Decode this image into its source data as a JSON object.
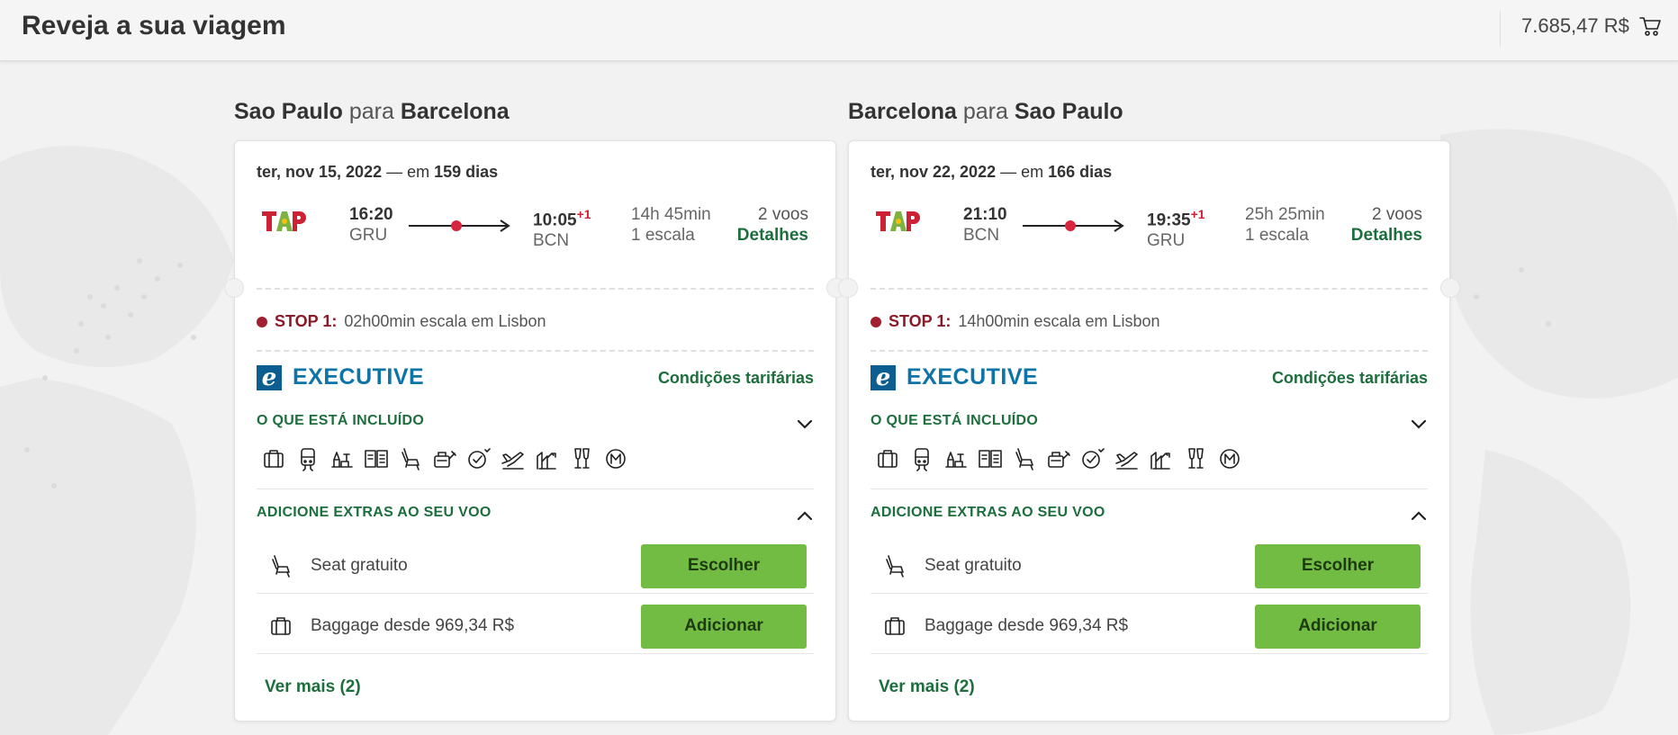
{
  "header": {
    "title": "Reveja a sua viagem",
    "cart_total": "7.685,47 R$"
  },
  "trips": [
    {
      "origin": "Sao Paulo",
      "connector": "para",
      "destination": "Barcelona",
      "date": "ter, nov 15, 2022",
      "date_sep": "— em",
      "days_until": "159 dias",
      "departure_time": "16:20",
      "departure_code": "GRU",
      "arrival_time": "10:05",
      "arrival_offset": "+1",
      "arrival_code": "BCN",
      "duration": "14h 45min",
      "stops": "1 escala",
      "flight_count": "2 voos",
      "details_link": "Detalhes",
      "stop_label": "STOP 1:",
      "stop_text": "02h00min escala em Lisbon",
      "cabin_badge": "e",
      "cabin": "EXECUTIVE",
      "fare_conditions": "Condições tarifárias",
      "included_heading": "O QUE ESTÁ INCLUÍDO",
      "extras_heading": "ADICIONE EXTRAS AO SEU VOO",
      "extras": [
        {
          "label": "Seat gratuito",
          "button": "Escolher",
          "icon": "seat-icon"
        },
        {
          "label": "Baggage desde 969,34 R$",
          "button": "Adicionar",
          "icon": "baggage-icon"
        }
      ],
      "see_more": "Ver mais (2)"
    },
    {
      "origin": "Barcelona",
      "connector": "para",
      "destination": "Sao Paulo",
      "date": "ter, nov 22, 2022",
      "date_sep": "— em",
      "days_until": "166 dias",
      "departure_time": "21:10",
      "departure_code": "BCN",
      "arrival_time": "19:35",
      "arrival_offset": "+1",
      "arrival_code": "GRU",
      "duration": "25h 25min",
      "stops": "1 escala",
      "flight_count": "2 voos",
      "details_link": "Detalhes",
      "stop_label": "STOP 1:",
      "stop_text": "14h00min escala em Lisbon",
      "cabin_badge": "e",
      "cabin": "EXECUTIVE",
      "fare_conditions": "Condições tarifárias",
      "included_heading": "O QUE ESTÁ INCLUÍDO",
      "extras_heading": "ADICIONE EXTRAS AO SEU VOO",
      "extras": [
        {
          "label": "Seat gratuito",
          "button": "Escolher",
          "icon": "seat-icon"
        },
        {
          "label": "Baggage desde 969,34 R$",
          "button": "Adicionar",
          "icon": "baggage-icon"
        }
      ],
      "see_more": "Ver mais (2)"
    }
  ],
  "amenity_icons": [
    "baggage-icon",
    "train-icon",
    "lounge-icon",
    "press-icon",
    "seat-icon",
    "meal-icon",
    "priority-icon",
    "boarding-icon",
    "upgrade-icon",
    "drinks-icon",
    "miles-icon"
  ],
  "colors": {
    "brand_green": "#1d6e3d",
    "button_green": "#72bc44",
    "stop_red": "#8b1a28",
    "cabin_blue": "#0e74a8"
  }
}
